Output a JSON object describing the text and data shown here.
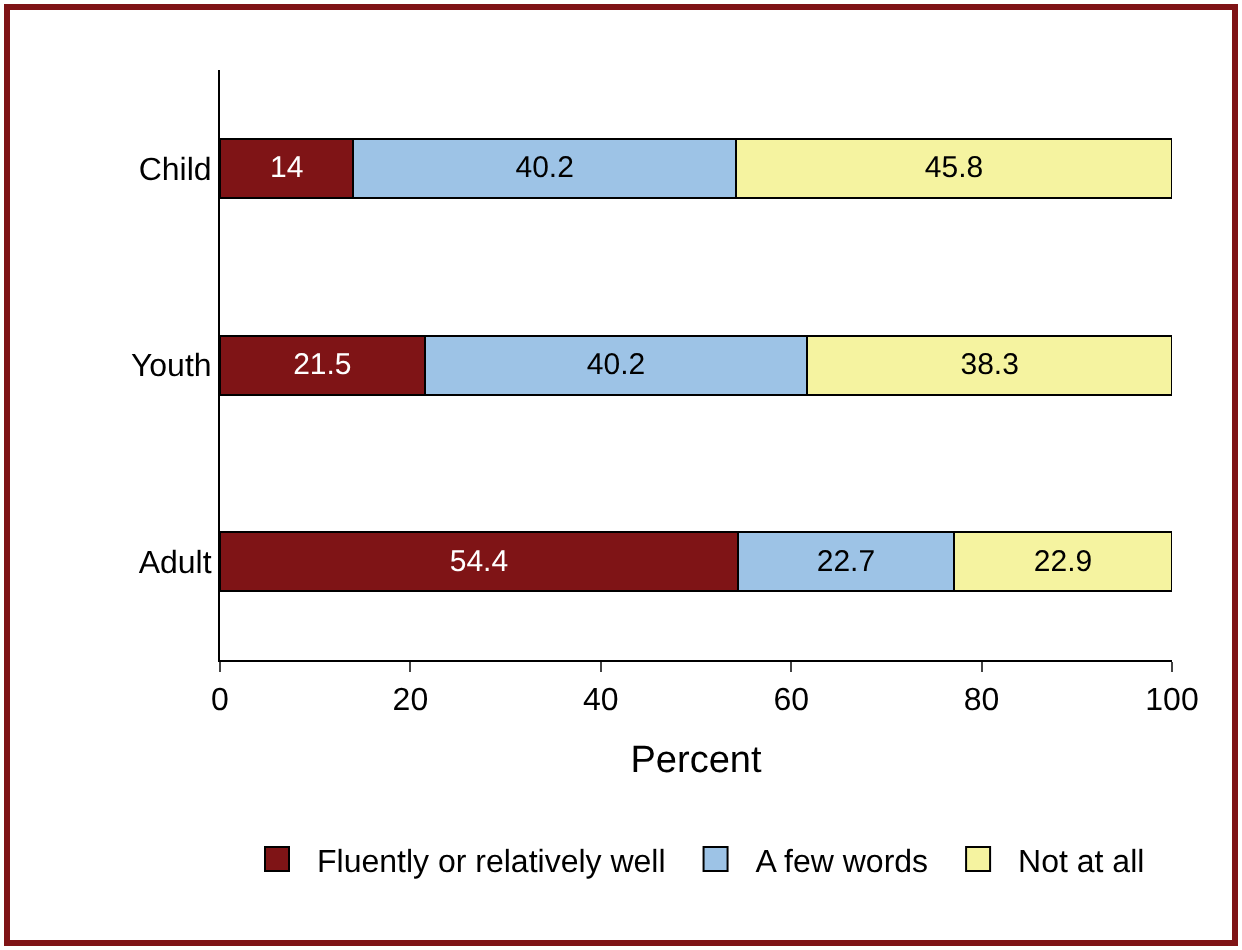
{
  "chart_data": {
    "type": "bar",
    "orientation": "horizontal",
    "stacked": true,
    "xlabel": "Percent",
    "categories": [
      "Child",
      "Youth",
      "Adult"
    ],
    "series": [
      {
        "name": "Fluently or relatively well",
        "color": "#7f1416",
        "values": [
          14,
          21.5,
          54.4
        ]
      },
      {
        "name": "A few words",
        "color": "#9dc3e6",
        "values": [
          40.2,
          40.2,
          22.7
        ]
      },
      {
        "name": "Not at all",
        "color": "#f5f3a0",
        "values": [
          45.8,
          38.3,
          22.9
        ]
      }
    ],
    "xlim": [
      0,
      100
    ],
    "xticks": [
      0,
      20,
      40,
      60,
      80,
      100
    ],
    "data_labels": true,
    "grid": false,
    "legend": "bottom"
  }
}
